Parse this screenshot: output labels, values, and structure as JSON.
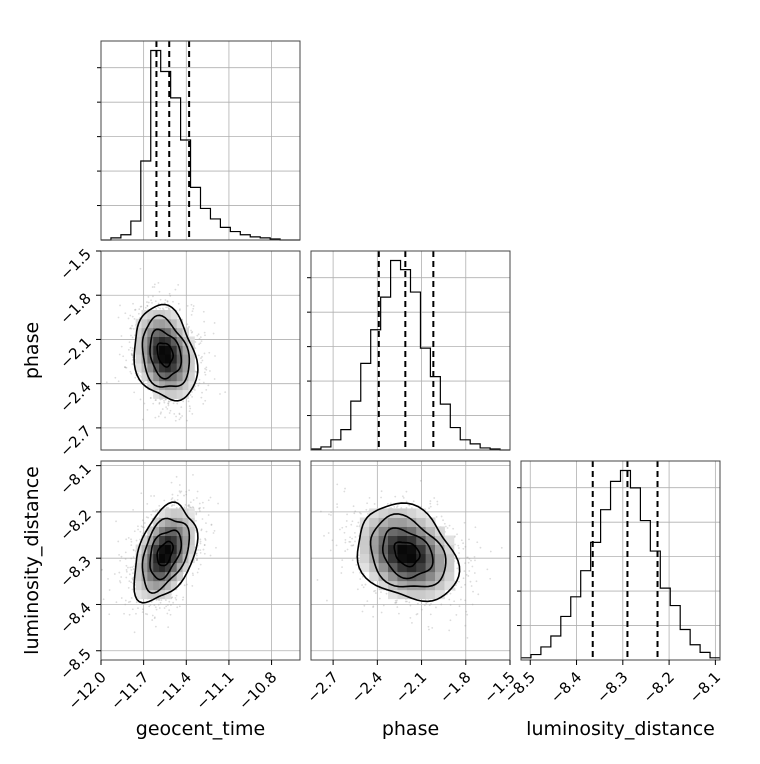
{
  "chart_data": {
    "type": "corner",
    "parameters": [
      "geocent_time",
      "phase",
      "luminosity_distance"
    ],
    "axis_labels": {
      "geocent_time": "geocent_time",
      "phase": "phase",
      "luminosity_distance": "luminosity_distance"
    },
    "ranges": {
      "geocent_time": [
        -12.0,
        -10.6
      ],
      "phase": [
        -2.85,
        -1.5
      ],
      "luminosity_distance": [
        -8.52,
        -8.09
      ]
    },
    "ticks": {
      "geocent_time": [
        -12.0,
        -11.7,
        -11.4,
        -11.1,
        -10.8
      ],
      "phase": [
        -2.7,
        -2.4,
        -2.1,
        -1.8,
        -1.5
      ],
      "luminosity_distance": [
        -8.5,
        -8.4,
        -8.3,
        -8.2,
        -8.1
      ]
    },
    "tick_labels": {
      "geocent_time": [
        "−12.0",
        "−11.7",
        "−11.4",
        "−11.1",
        "−10.8"
      ],
      "phase": [
        "−2.7",
        "−2.4",
        "−2.1",
        "−1.8",
        "−1.5"
      ],
      "luminosity_distance": [
        "−8.5",
        "−8.4",
        "−8.3",
        "−8.2",
        "−8.1"
      ]
    },
    "quantiles": {
      "geocent_time": [
        -11.61,
        -11.52,
        -11.38
      ],
      "phase": [
        -2.39,
        -2.21,
        -2.02
      ],
      "luminosity_distance": [
        -8.365,
        -8.29,
        -8.225
      ]
    },
    "histograms": {
      "geocent_time": {
        "edges": [
          -12.0,
          -11.93,
          -11.86,
          -11.79,
          -11.72,
          -11.65,
          -11.58,
          -11.51,
          -11.44,
          -11.37,
          -11.3,
          -11.23,
          -11.16,
          -11.09,
          -11.02,
          -10.95,
          -10.88,
          -10.81,
          -10.74,
          -10.67,
          -10.6
        ],
        "counts": [
          0,
          2,
          5,
          18,
          75,
          180,
          160,
          135,
          95,
          50,
          30,
          20,
          12,
          8,
          5,
          3,
          2,
          1,
          0,
          0
        ]
      },
      "phase": {
        "edges": [
          -2.85,
          -2.7825,
          -2.715,
          -2.6475,
          -2.58,
          -2.5125,
          -2.445,
          -2.3775,
          -2.31,
          -2.2425,
          -2.175,
          -2.1075,
          -2.04,
          -1.9725,
          -1.905,
          -1.8375,
          -1.77,
          -1.7025,
          -1.635,
          -1.5675,
          -1.5
        ],
        "counts": [
          1,
          3,
          10,
          20,
          48,
          85,
          118,
          150,
          186,
          177,
          155,
          100,
          72,
          45,
          22,
          10,
          6,
          2,
          1,
          0
        ]
      },
      "luminosity_distance": {
        "edges": [
          -8.52,
          -8.4985,
          -8.477,
          -8.4555,
          -8.434,
          -8.4125,
          -8.391,
          -8.3695,
          -8.348,
          -8.3265,
          -8.305,
          -8.2835,
          -8.262,
          -8.2405,
          -8.219,
          -8.1975,
          -8.176,
          -8.1545,
          -8.133,
          -8.1115,
          -8.09
        ],
        "counts": [
          2,
          5,
          12,
          22,
          40,
          58,
          82,
          108,
          138,
          164,
          174,
          158,
          128,
          100,
          66,
          50,
          28,
          14,
          7,
          2
        ]
      }
    },
    "joint_2d": [
      {
        "x": "geocent_time",
        "y": "phase",
        "mean": [
          -11.55,
          -2.2
        ],
        "std": [
          0.11,
          0.16
        ],
        "correlation": -0.22,
        "contour_levels_sigma": [
          0.5,
          1.0,
          1.5,
          2.0
        ]
      },
      {
        "x": "geocent_time",
        "y": "luminosity_distance",
        "mean": [
          -11.55,
          -8.29
        ],
        "std": [
          0.11,
          0.052
        ],
        "correlation": 0.4,
        "contour_levels_sigma": [
          0.5,
          1.0,
          1.5,
          2.0
        ]
      },
      {
        "x": "phase",
        "y": "luminosity_distance",
        "mean": [
          -2.2,
          -8.29
        ],
        "std": [
          0.17,
          0.052
        ],
        "correlation": -0.25,
        "contour_levels_sigma": [
          0.5,
          1.0,
          1.5,
          2.0
        ]
      }
    ],
    "colors": {
      "density": "#000000",
      "points": "#9a9a9a",
      "grid": "#b0b0b0",
      "frame": "#000000"
    },
    "grid": true,
    "legend": "none"
  }
}
